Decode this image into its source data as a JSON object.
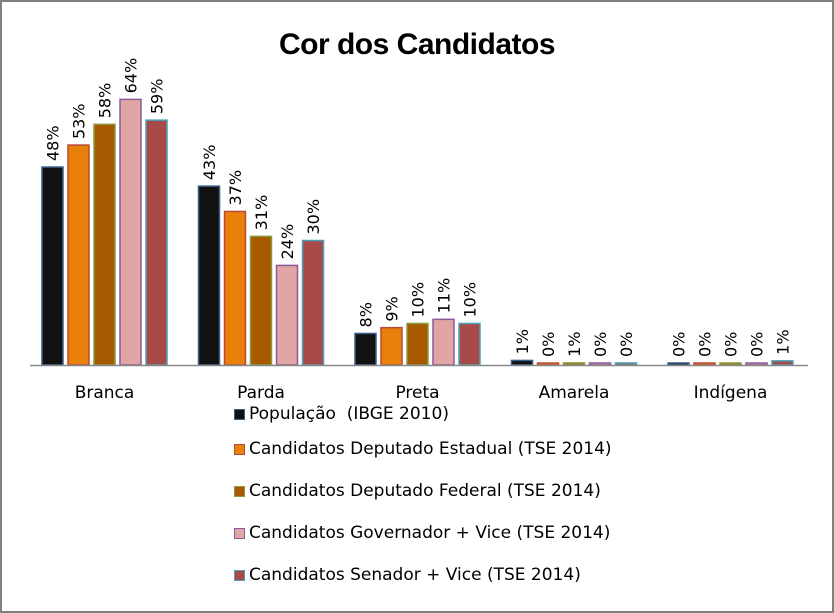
{
  "chart_data": {
    "type": "bar",
    "title": "Cor dos Candidatos",
    "xlabel": "",
    "ylabel": "",
    "ylim": [
      0,
      70
    ],
    "grid": false,
    "legend_position": "bottom",
    "categories": [
      "Branca",
      "Parda",
      "Preta",
      "Amarela",
      "Indígena"
    ],
    "series": [
      {
        "name": "População  (IBGE 2010)",
        "color": "#111111",
        "border": "#3a5f8a",
        "values": [
          48,
          43,
          8,
          1,
          0
        ],
        "labels": [
          "48%",
          "43%",
          "8%",
          "1%",
          "0%"
        ],
        "raw": [
          47.7,
          43.1,
          7.6,
          1.1,
          0.4
        ]
      },
      {
        "name": "Candidatos Deputado Estadual (TSE 2014)",
        "color": "#e8800a",
        "border": "#b84a3a",
        "values": [
          53,
          37,
          9,
          0,
          0
        ],
        "labels": [
          "53%",
          "37%",
          "9%",
          "0%",
          "0%"
        ],
        "raw": [
          53,
          37,
          9,
          0.4,
          0.2
        ]
      },
      {
        "name": "Candidatos Deputado Federal (TSE 2014)",
        "color": "#a85a00",
        "border": "#8a9a40",
        "values": [
          58,
          31,
          10,
          1,
          0
        ],
        "labels": [
          "58%",
          "31%",
          "10%",
          "1%",
          "0%"
        ],
        "raw": [
          58,
          31,
          10,
          0.5,
          0.4
        ]
      },
      {
        "name": "Candidatos Governador + Vice (TSE 2014)",
        "color": "#e0a5a5",
        "border": "#8a5a9a",
        "values": [
          64,
          24,
          11,
          0,
          0
        ],
        "labels": [
          "64%",
          "24%",
          "11%",
          "0%",
          "0%"
        ],
        "raw": [
          64,
          24,
          11,
          0.2,
          0.2
        ]
      },
      {
        "name": "Candidatos Senador + Vice (TSE 2014)",
        "color": "#a84a48",
        "border": "#4aa0b8",
        "values": [
          59,
          30,
          10,
          0,
          1
        ],
        "labels": [
          "59%",
          "30%",
          "10%",
          "0%",
          "1%"
        ],
        "raw": [
          59,
          30,
          10,
          0.2,
          1.0
        ]
      }
    ]
  }
}
